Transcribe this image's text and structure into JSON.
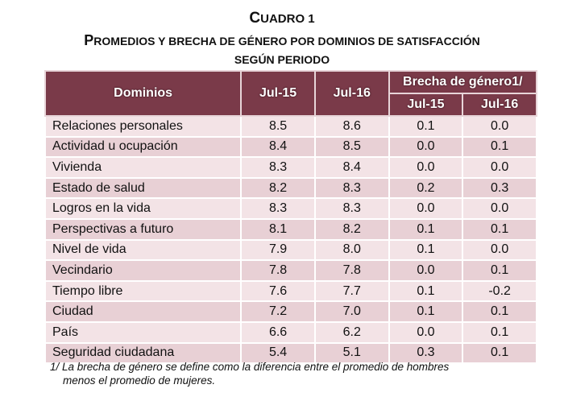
{
  "title": {
    "cuadro_first": "C",
    "cuadro_rest": "UADRO 1",
    "heading_first": "P",
    "heading_rest": "ROMEDIOS Y BRECHA DE GÉNERO POR DOMINIOS DE SATISFACCIÓN",
    "subheading": "SEGÚN PERIODO"
  },
  "table": {
    "headers": {
      "dominios": "Dominios",
      "jul15": "Jul-15",
      "jul16": "Jul-16",
      "brecha": "Brecha de género1/",
      "brecha_jul15": "Jul-15",
      "brecha_jul16": "Jul-16"
    },
    "rows": [
      {
        "dominio": "Relaciones personales",
        "jul15": "8.5",
        "jul16": "8.6",
        "brecha15": "0.1",
        "brecha16": "0.0"
      },
      {
        "dominio": "Actividad u ocupación",
        "jul15": "8.4",
        "jul16": "8.5",
        "brecha15": "0.0",
        "brecha16": "0.1"
      },
      {
        "dominio": "Vivienda",
        "jul15": "8.3",
        "jul16": "8.4",
        "brecha15": "0.0",
        "brecha16": "0.0"
      },
      {
        "dominio": "Estado de salud",
        "jul15": "8.2",
        "jul16": "8.3",
        "brecha15": "0.2",
        "brecha16": "0.3"
      },
      {
        "dominio": "Logros en la vida",
        "jul15": "8.3",
        "jul16": "8.3",
        "brecha15": "0.0",
        "brecha16": "0.0"
      },
      {
        "dominio": "Perspectivas a futuro",
        "jul15": "8.1",
        "jul16": "8.2",
        "brecha15": "0.1",
        "brecha16": "0.1"
      },
      {
        "dominio": "Nivel de vida",
        "jul15": "7.9",
        "jul16": "8.0",
        "brecha15": "0.1",
        "brecha16": "0.0"
      },
      {
        "dominio": "Vecindario",
        "jul15": "7.8",
        "jul16": "7.8",
        "brecha15": "0.0",
        "brecha16": "0.1"
      },
      {
        "dominio": "Tiempo libre",
        "jul15": "7.6",
        "jul16": "7.7",
        "brecha15": "0.1",
        "brecha16": "-0.2"
      },
      {
        "dominio": "Ciudad",
        "jul15": "7.2",
        "jul16": "7.0",
        "brecha15": "0.1",
        "brecha16": "0.1"
      },
      {
        "dominio": "País",
        "jul15": "6.6",
        "jul16": "6.2",
        "brecha15": "0.0",
        "brecha16": "0.1"
      },
      {
        "dominio": "Seguridad ciudadana",
        "jul15": "5.4",
        "jul16": "5.1",
        "brecha15": "0.3",
        "brecha16": "0.1"
      }
    ]
  },
  "footnote": {
    "line1": "1/ La brecha de género se define como la diferencia entre el promedio de hombres",
    "line2": "menos el promedio de mujeres."
  },
  "colors": {
    "header_bg": "#7a3a49",
    "row_light": "#f3e3e6",
    "row_dark": "#e8d0d5"
  }
}
